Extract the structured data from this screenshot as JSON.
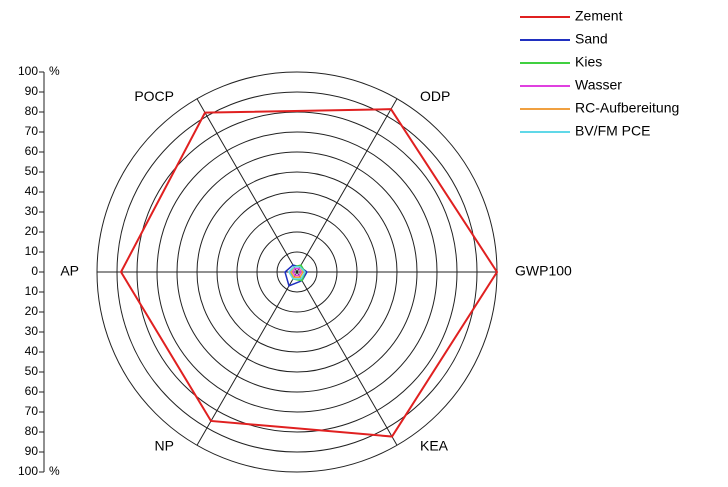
{
  "chart_data": {
    "type": "radar",
    "categories": [
      "GWP100",
      "ODP",
      "POCP",
      "AP",
      "NP",
      "KEA"
    ],
    "rlim": [
      0,
      100
    ],
    "rticks": [
      0,
      10,
      20,
      30,
      40,
      50,
      60,
      70,
      80,
      90,
      100
    ],
    "unit": "%",
    "series": [
      {
        "name": "Zement",
        "color": "#e02020",
        "values": [
          100,
          94,
          92,
          88,
          86,
          95
        ]
      },
      {
        "name": "Sand",
        "color": "#2030c0",
        "values": [
          5,
          3,
          4,
          6,
          8,
          5
        ]
      },
      {
        "name": "Kies",
        "color": "#40d040",
        "values": [
          4,
          4,
          3,
          3,
          4,
          5
        ]
      },
      {
        "name": "Wasser",
        "color": "#e040e0",
        "values": [
          2,
          2,
          2,
          2,
          2,
          2
        ]
      },
      {
        "name": "RC-Aufbereitung",
        "color": "#f0a040",
        "values": [
          3,
          3,
          3,
          3,
          3,
          3
        ]
      },
      {
        "name": "BV/FM PCE",
        "color": "#60d8e8",
        "values": [
          4,
          3,
          3,
          4,
          4,
          4
        ]
      }
    ]
  }
}
